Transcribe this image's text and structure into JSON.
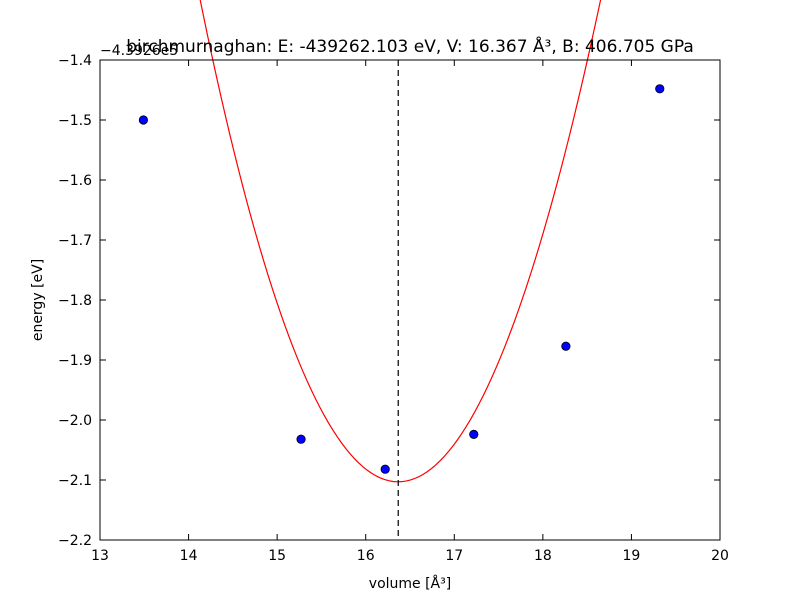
{
  "chart_data": {
    "type": "scatter",
    "title": "birchmurnaghan: E: -439262.103 eV, V: 16.367 Å³, B: 406.705 GPa",
    "xlabel": "volume [Å³]",
    "ylabel": "energy [eV]",
    "y_offset_label": "−4.3926e5",
    "xlim": [
      13,
      20
    ],
    "ylim": [
      -2.2,
      -1.4
    ],
    "x_ticks": [
      13,
      14,
      15,
      16,
      17,
      18,
      19,
      20
    ],
    "x_tick_labels": [
      "13",
      "14",
      "15",
      "16",
      "17",
      "18",
      "19",
      "20"
    ],
    "y_ticks": [
      -2.2,
      -2.1,
      -2.0,
      -1.9,
      -1.8,
      -1.7,
      -1.6,
      -1.5,
      -1.4
    ],
    "y_tick_labels": [
      "−2.2",
      "−2.1",
      "−2.0",
      "−1.9",
      "−1.8",
      "−1.7",
      "−1.6",
      "−1.5",
      "−1.4"
    ],
    "grid": false,
    "points": {
      "x": [
        13.49,
        15.27,
        16.22,
        17.22,
        18.26,
        19.32
      ],
      "y": [
        -1.5,
        -2.032,
        -2.082,
        -2.024,
        -1.877,
        -1.448
      ],
      "color": "#0000ff"
    },
    "fit": {
      "color": "#ff0000",
      "x_min": 13.49,
      "x_max": 19.32,
      "v0": 16.367,
      "e_min": -2.103,
      "a": 0.1573,
      "b": -0.0015
    },
    "vline": {
      "x": 16.367,
      "style": "dashed",
      "color": "#000000"
    }
  }
}
